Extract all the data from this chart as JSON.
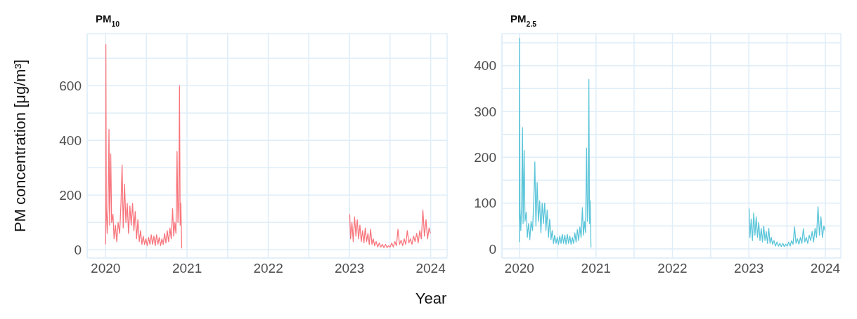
{
  "chart_data": [
    {
      "type": "line",
      "title": "PM$_{10}$",
      "xlabel": "Year",
      "ylabel": "PM concentration [μg/m³]",
      "grid": true,
      "xlim": [
        "2019-10-10",
        "2024-03-15"
      ],
      "xticks": [
        {
          "value": "2020-01-01",
          "label": "2020"
        },
        {
          "value": "2020-07-02",
          "label": null
        },
        {
          "value": "2021-01-01",
          "label": "2021"
        },
        {
          "value": "2021-07-02",
          "label": null
        },
        {
          "value": "2022-01-01",
          "label": "2022"
        },
        {
          "value": "2022-07-02",
          "label": null
        },
        {
          "value": "2023-01-01",
          "label": "2023"
        },
        {
          "value": "2023-07-02",
          "label": null
        },
        {
          "value": "2024-01-01",
          "label": "2024"
        }
      ],
      "ylim": [
        -30,
        790
      ],
      "yticks": [
        0,
        {
          "value": 100,
          "label": null
        },
        200,
        {
          "value": 300,
          "label": null
        },
        400,
        {
          "value": 500,
          "label": null
        },
        600,
        {
          "value": 700,
          "label": null
        }
      ],
      "x": [
        "2020-01-01",
        "2020-01-02",
        "2020-01-04",
        "2020-01-08",
        "2020-01-12",
        "2020-01-16",
        "2020-01-19",
        "2020-01-24",
        "2020-01-28",
        "2020-02-03",
        "2020-02-08",
        "2020-02-14",
        "2020-02-20",
        "2020-02-26",
        "2020-03-04",
        "2020-03-10",
        "2020-03-15",
        "2020-03-20",
        "2020-03-26",
        "2020-04-01",
        "2020-04-07",
        "2020-04-13",
        "2020-04-19",
        "2020-04-25",
        "2020-05-01",
        "2020-05-07",
        "2020-05-13",
        "2020-05-19",
        "2020-05-25",
        "2020-05-31",
        "2020-06-06",
        "2020-06-12",
        "2020-06-18",
        "2020-06-24",
        "2020-06-30",
        "2020-07-06",
        "2020-07-12",
        "2020-07-18",
        "2020-07-24",
        "2020-07-30",
        "2020-08-05",
        "2020-08-11",
        "2020-08-17",
        "2020-08-23",
        "2020-08-29",
        "2020-09-04",
        "2020-09-10",
        "2020-09-16",
        "2020-09-22",
        "2020-09-28",
        "2020-10-04",
        "2020-10-10",
        "2020-10-16",
        "2020-10-22",
        "2020-10-28",
        "2020-11-02",
        "2020-11-07",
        "2020-11-12",
        "2020-11-17",
        "2020-11-21",
        "2020-11-25",
        "2020-11-28",
        "2020-12-01",
        "2020-12-04",
        "2020-12-08",
        "2022-01-01",
        "2023-01-02",
        "2023-01-06",
        "2023-01-12",
        "2023-01-18",
        "2023-01-24",
        "2023-01-30",
        "2023-02-05",
        "2023-02-11",
        "2023-02-17",
        "2023-02-23",
        "2023-03-01",
        "2023-03-07",
        "2023-03-13",
        "2023-03-19",
        "2023-03-25",
        "2023-03-31",
        "2023-04-06",
        "2023-04-12",
        "2023-04-18",
        "2023-04-24",
        "2023-05-01",
        "2023-05-08",
        "2023-05-15",
        "2023-05-22",
        "2023-05-29",
        "2023-06-05",
        "2023-06-12",
        "2023-06-19",
        "2023-06-26",
        "2023-07-03",
        "2023-07-10",
        "2023-07-17",
        "2023-07-24",
        "2023-07-31",
        "2023-08-07",
        "2023-08-14",
        "2023-08-21",
        "2023-08-28",
        "2023-09-04",
        "2023-09-11",
        "2023-09-18",
        "2023-09-25",
        "2023-10-02",
        "2023-10-09",
        "2023-10-16",
        "2023-10-23",
        "2023-10-30",
        "2023-11-06",
        "2023-11-13",
        "2023-11-20",
        "2023-11-27",
        "2023-12-04",
        "2023-12-11",
        "2023-12-18",
        "2023-12-25",
        "2023-12-31"
      ],
      "series": [
        {
          "color": "#f8767d",
          "values": [
            20,
            750,
            150,
            60,
            160,
            440,
            90,
            350,
            100,
            130,
            40,
            90,
            30,
            100,
            60,
            170,
            310,
            80,
            240,
            100,
            170,
            60,
            160,
            90,
            170,
            70,
            140,
            40,
            110,
            30,
            70,
            20,
            50,
            20,
            40,
            15,
            45,
            20,
            55,
            20,
            50,
            15,
            55,
            20,
            45,
            15,
            40,
            20,
            60,
            25,
            70,
            30,
            80,
            40,
            150,
            50,
            100,
            60,
            360,
            100,
            180,
            600,
            90,
            170,
            5,
            null,
            130,
            40,
            100,
            30,
            120,
            50,
            110,
            40,
            90,
            30,
            70,
            25,
            80,
            30,
            60,
            20,
            75,
            20,
            40,
            15,
            30,
            10,
            25,
            10,
            20,
            8,
            20,
            8,
            15,
            10,
            25,
            10,
            30,
            15,
            75,
            20,
            35,
            15,
            40,
            20,
            70,
            25,
            40,
            20,
            50,
            30,
            60,
            25,
            70,
            40,
            145,
            50,
            110,
            40,
            80,
            60
          ]
        }
      ]
    },
    {
      "type": "line",
      "title": "PM$_{2.5}$",
      "grid": true,
      "xlim": [
        "2019-10-10",
        "2024-03-15"
      ],
      "xticks": [
        {
          "value": "2020-01-01",
          "label": "2020"
        },
        {
          "value": "2020-07-02",
          "label": null
        },
        {
          "value": "2021-01-01",
          "label": "2021"
        },
        {
          "value": "2021-07-02",
          "label": null
        },
        {
          "value": "2022-01-01",
          "label": "2022"
        },
        {
          "value": "2022-07-02",
          "label": null
        },
        {
          "value": "2023-01-01",
          "label": "2023"
        },
        {
          "value": "2023-07-02",
          "label": null
        },
        {
          "value": "2024-01-01",
          "label": "2024"
        }
      ],
      "ylim": [
        -20,
        470
      ],
      "yticks": [
        0,
        {
          "value": 50,
          "label": null
        },
        100,
        {
          "value": 150,
          "label": null
        },
        200,
        {
          "value": 250,
          "label": null
        },
        300,
        {
          "value": 350,
          "label": null
        },
        400,
        {
          "value": 450,
          "label": null
        }
      ],
      "x": [
        "2020-01-01",
        "2020-01-02",
        "2020-01-04",
        "2020-01-08",
        "2020-01-12",
        "2020-01-16",
        "2020-01-19",
        "2020-01-24",
        "2020-01-28",
        "2020-02-03",
        "2020-02-08",
        "2020-02-14",
        "2020-02-20",
        "2020-02-26",
        "2020-03-04",
        "2020-03-10",
        "2020-03-15",
        "2020-03-20",
        "2020-03-26",
        "2020-04-01",
        "2020-04-07",
        "2020-04-13",
        "2020-04-19",
        "2020-04-25",
        "2020-05-01",
        "2020-05-07",
        "2020-05-13",
        "2020-05-19",
        "2020-05-25",
        "2020-05-31",
        "2020-06-06",
        "2020-06-12",
        "2020-06-18",
        "2020-06-24",
        "2020-06-30",
        "2020-07-06",
        "2020-07-12",
        "2020-07-18",
        "2020-07-24",
        "2020-07-30",
        "2020-08-05",
        "2020-08-11",
        "2020-08-17",
        "2020-08-23",
        "2020-08-29",
        "2020-09-04",
        "2020-09-10",
        "2020-09-16",
        "2020-09-22",
        "2020-09-28",
        "2020-10-04",
        "2020-10-10",
        "2020-10-16",
        "2020-10-22",
        "2020-10-28",
        "2020-11-02",
        "2020-11-07",
        "2020-11-12",
        "2020-11-17",
        "2020-11-21",
        "2020-11-25",
        "2020-11-28",
        "2020-12-01",
        "2020-12-04",
        "2020-12-08",
        "2022-01-01",
        "2023-01-02",
        "2023-01-06",
        "2023-01-12",
        "2023-01-18",
        "2023-01-24",
        "2023-01-30",
        "2023-02-05",
        "2023-02-11",
        "2023-02-17",
        "2023-02-23",
        "2023-03-01",
        "2023-03-07",
        "2023-03-13",
        "2023-03-19",
        "2023-03-25",
        "2023-03-31",
        "2023-04-06",
        "2023-04-12",
        "2023-04-18",
        "2023-04-24",
        "2023-05-01",
        "2023-05-08",
        "2023-05-15",
        "2023-05-22",
        "2023-05-29",
        "2023-06-05",
        "2023-06-12",
        "2023-06-19",
        "2023-06-26",
        "2023-07-03",
        "2023-07-10",
        "2023-07-17",
        "2023-07-24",
        "2023-07-31",
        "2023-08-07",
        "2023-08-14",
        "2023-08-21",
        "2023-08-28",
        "2023-09-04",
        "2023-09-11",
        "2023-09-18",
        "2023-09-25",
        "2023-10-02",
        "2023-10-09",
        "2023-10-16",
        "2023-10-23",
        "2023-10-30",
        "2023-11-06",
        "2023-11-13",
        "2023-11-20",
        "2023-11-27",
        "2023-12-04",
        "2023-12-11",
        "2023-12-18",
        "2023-12-25",
        "2023-12-31"
      ],
      "series": [
        {
          "color": "#5bc5d9",
          "values": [
            15,
            460,
            90,
            40,
            95,
            265,
            55,
            215,
            60,
            80,
            25,
            55,
            20,
            60,
            40,
            105,
            190,
            50,
            145,
            60,
            105,
            35,
            100,
            55,
            100,
            40,
            85,
            25,
            65,
            20,
            40,
            12,
            30,
            12,
            25,
            10,
            28,
            12,
            32,
            12,
            30,
            10,
            32,
            12,
            28,
            10,
            25,
            12,
            35,
            15,
            42,
            18,
            48,
            25,
            90,
            30,
            60,
            36,
            220,
            60,
            110,
            370,
            55,
            105,
            3,
            null,
            88,
            25,
            65,
            18,
            78,
            30,
            70,
            25,
            58,
            18,
            45,
            15,
            50,
            18,
            38,
            12,
            45,
            12,
            25,
            10,
            18,
            6,
            15,
            6,
            12,
            5,
            12,
            5,
            10,
            6,
            15,
            6,
            18,
            10,
            48,
            12,
            22,
            10,
            25,
            12,
            44,
            15,
            25,
            12,
            30,
            18,
            38,
            15,
            45,
            25,
            92,
            30,
            70,
            25,
            50,
            40
          ]
        }
      ]
    }
  ]
}
